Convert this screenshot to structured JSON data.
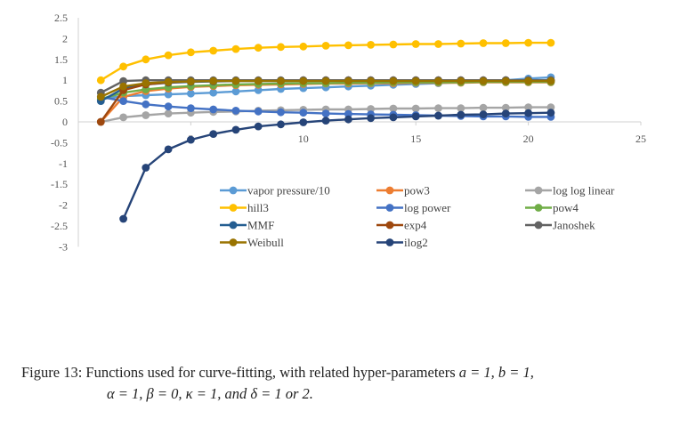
{
  "chart_data": {
    "type": "line",
    "title": "",
    "xlabel": "",
    "ylabel": "",
    "xlim": [
      0,
      25
    ],
    "ylim": [
      -3,
      2.5
    ],
    "xticks": [
      5,
      10,
      15,
      20,
      25
    ],
    "xtick_labels": [
      "5",
      "10",
      "15",
      "20",
      "25"
    ],
    "yticks": [
      2.5,
      2,
      1.5,
      1,
      0.5,
      0,
      -0.5,
      -1,
      -1.5,
      -2,
      -2.5,
      -3
    ],
    "ytick_labels": [
      "2.5",
      "2",
      "1.5",
      "1",
      "0.5",
      "0",
      "-0.5",
      "-1",
      "-1.5",
      "-2",
      "-2.5",
      "-3"
    ],
    "legend_position": "lower-middle",
    "x": [
      1,
      2,
      3,
      4,
      5,
      6,
      7,
      8,
      9,
      10,
      11,
      12,
      13,
      14,
      15,
      16,
      17,
      18,
      19,
      20,
      21
    ],
    "series": [
      {
        "name": "vapor pressure/10",
        "color": "#5b9bd5",
        "values": [
          0.55,
          0.62,
          0.64,
          0.66,
          0.68,
          0.7,
          0.73,
          0.76,
          0.79,
          0.81,
          0.83,
          0.85,
          0.87,
          0.89,
          0.91,
          0.93,
          0.95,
          0.97,
          1.0,
          1.04,
          1.07
        ]
      },
      {
        "name": "pow3",
        "color": "#ed7d31",
        "values": [
          0.0,
          0.6,
          0.74,
          0.8,
          0.84,
          0.86,
          0.88,
          0.89,
          0.9,
          0.91,
          0.92,
          0.92,
          0.93,
          0.93,
          0.94,
          0.94,
          0.94,
          0.95,
          0.95,
          0.95,
          0.95
        ]
      },
      {
        "name": "log log linear",
        "color": "#a5a5a5",
        "values": [
          0.0,
          0.11,
          0.16,
          0.2,
          0.22,
          0.24,
          0.25,
          0.27,
          0.28,
          0.29,
          0.3,
          0.3,
          0.31,
          0.32,
          0.32,
          0.33,
          0.33,
          0.34,
          0.34,
          0.35,
          0.35
        ]
      },
      {
        "name": "hill3",
        "color": "#ffc000",
        "values": [
          1.0,
          1.33,
          1.5,
          1.6,
          1.67,
          1.71,
          1.75,
          1.78,
          1.8,
          1.81,
          1.83,
          1.84,
          1.85,
          1.86,
          1.87,
          1.87,
          1.88,
          1.89,
          1.89,
          1.9,
          1.9
        ]
      },
      {
        "name": "log power",
        "color": "#4472c4",
        "values": [
          0.6,
          0.5,
          0.42,
          0.37,
          0.33,
          0.3,
          0.27,
          0.25,
          0.23,
          0.22,
          0.2,
          0.19,
          0.18,
          0.17,
          0.16,
          0.15,
          0.14,
          0.13,
          0.13,
          0.12,
          0.12
        ]
      },
      {
        "name": "pow4",
        "color": "#70ad47",
        "values": [
          0.55,
          0.7,
          0.78,
          0.83,
          0.86,
          0.88,
          0.9,
          0.91,
          0.92,
          0.93,
          0.93,
          0.94,
          0.94,
          0.95,
          0.95,
          0.95,
          0.95,
          0.96,
          0.96,
          0.96,
          0.96
        ]
      },
      {
        "name": "MMF",
        "color": "#255e91",
        "values": [
          0.5,
          0.8,
          0.9,
          0.94,
          0.96,
          0.97,
          0.98,
          0.98,
          0.98,
          0.99,
          0.99,
          0.99,
          0.99,
          0.99,
          0.99,
          0.99,
          0.99,
          0.99,
          1.0,
          1.0,
          1.0
        ]
      },
      {
        "name": "exp4",
        "color": "#9e480e",
        "values": [
          0.0,
          0.76,
          0.9,
          0.95,
          0.97,
          0.98,
          0.99,
          0.99,
          0.99,
          1.0,
          1.0,
          1.0,
          1.0,
          1.0,
          1.0,
          1.0,
          1.0,
          1.0,
          1.0,
          1.0,
          1.0
        ]
      },
      {
        "name": "Janoshek",
        "color": "#636363",
        "values": [
          0.7,
          0.98,
          1.0,
          1.0,
          1.0,
          1.0,
          1.0,
          1.0,
          1.0,
          1.0,
          1.0,
          1.0,
          1.0,
          1.0,
          1.0,
          1.0,
          1.0,
          1.0,
          1.0,
          1.0,
          1.0
        ]
      },
      {
        "name": "Weibull",
        "color": "#997300",
        "values": [
          0.6,
          0.85,
          0.93,
          0.96,
          0.97,
          0.98,
          0.98,
          0.98,
          0.98,
          0.98,
          0.98,
          0.98,
          0.98,
          0.98,
          0.98,
          0.98,
          0.98,
          0.98,
          0.98,
          0.98,
          0.98
        ]
      },
      {
        "name": "ilog2",
        "color": "#264478",
        "values": [
          null,
          -2.33,
          -1.1,
          -0.66,
          -0.43,
          -0.29,
          -0.19,
          -0.11,
          -0.06,
          -0.01,
          0.03,
          0.06,
          0.09,
          0.11,
          0.13,
          0.15,
          0.17,
          0.18,
          0.2,
          0.21,
          0.22
        ]
      }
    ]
  },
  "caption": {
    "prefix": "Figure 13: Functions used for curve-fitting, with related hyper-parameters ",
    "line1_math": "a = 1, b = 1,",
    "line2_math": "α = 1, β = 0, κ = 1, and δ = 1 or 2."
  }
}
